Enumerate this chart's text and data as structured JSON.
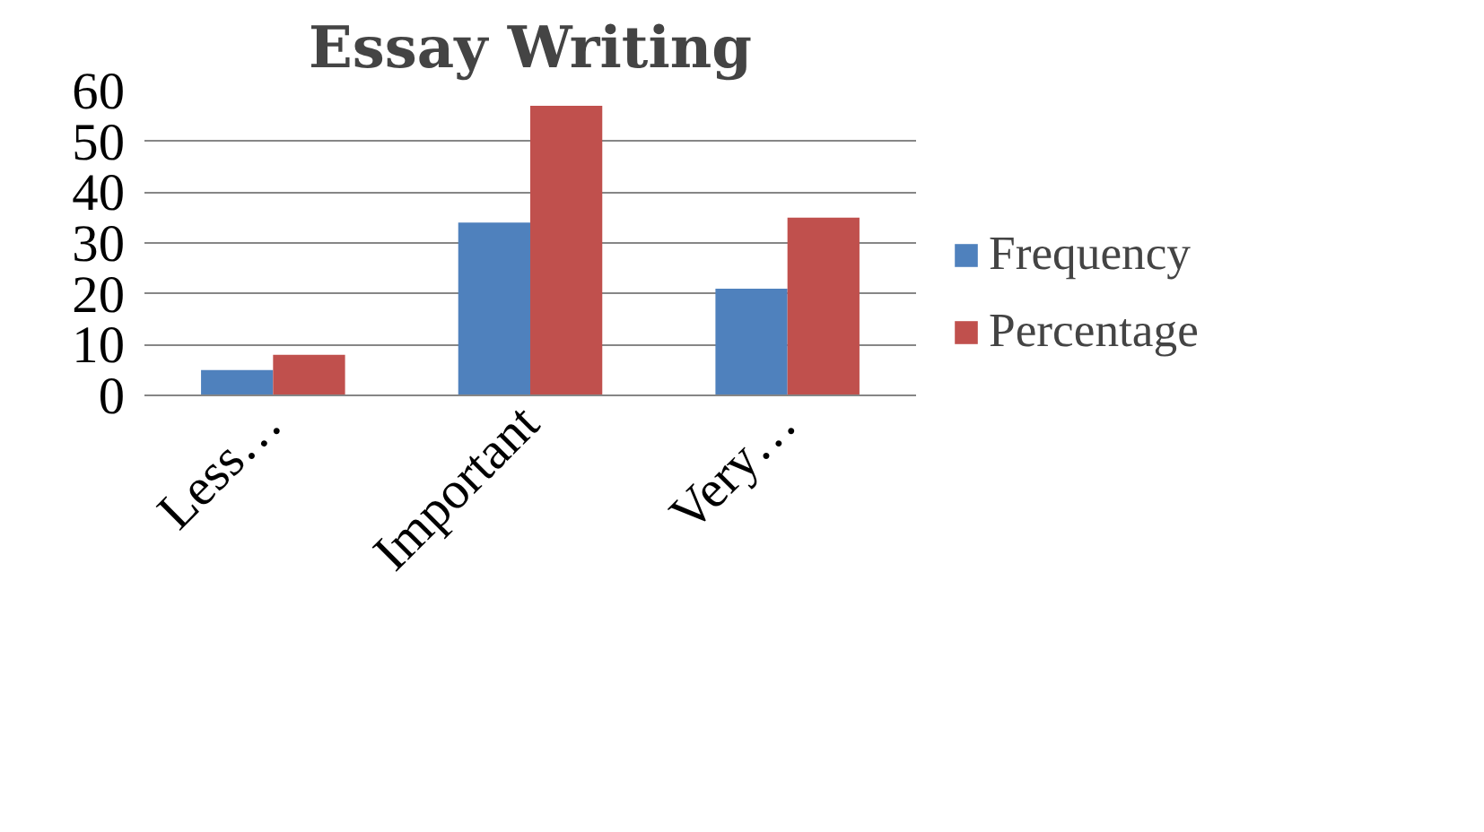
{
  "chart_data": {
    "type": "bar",
    "title": "Essay Writing",
    "categories": [
      "Less…",
      "Important",
      "Very…"
    ],
    "series": [
      {
        "name": "Frequency",
        "color": "#4f81bd",
        "values": [
          5,
          34,
          21
        ]
      },
      {
        "name": "Percentage",
        "color": "#c0504d",
        "values": [
          8,
          57,
          35
        ]
      }
    ],
    "ylim": [
      0,
      60
    ],
    "yticks": [
      0,
      10,
      20,
      30,
      40,
      50,
      60
    ],
    "grid": "y",
    "legend": "right"
  }
}
